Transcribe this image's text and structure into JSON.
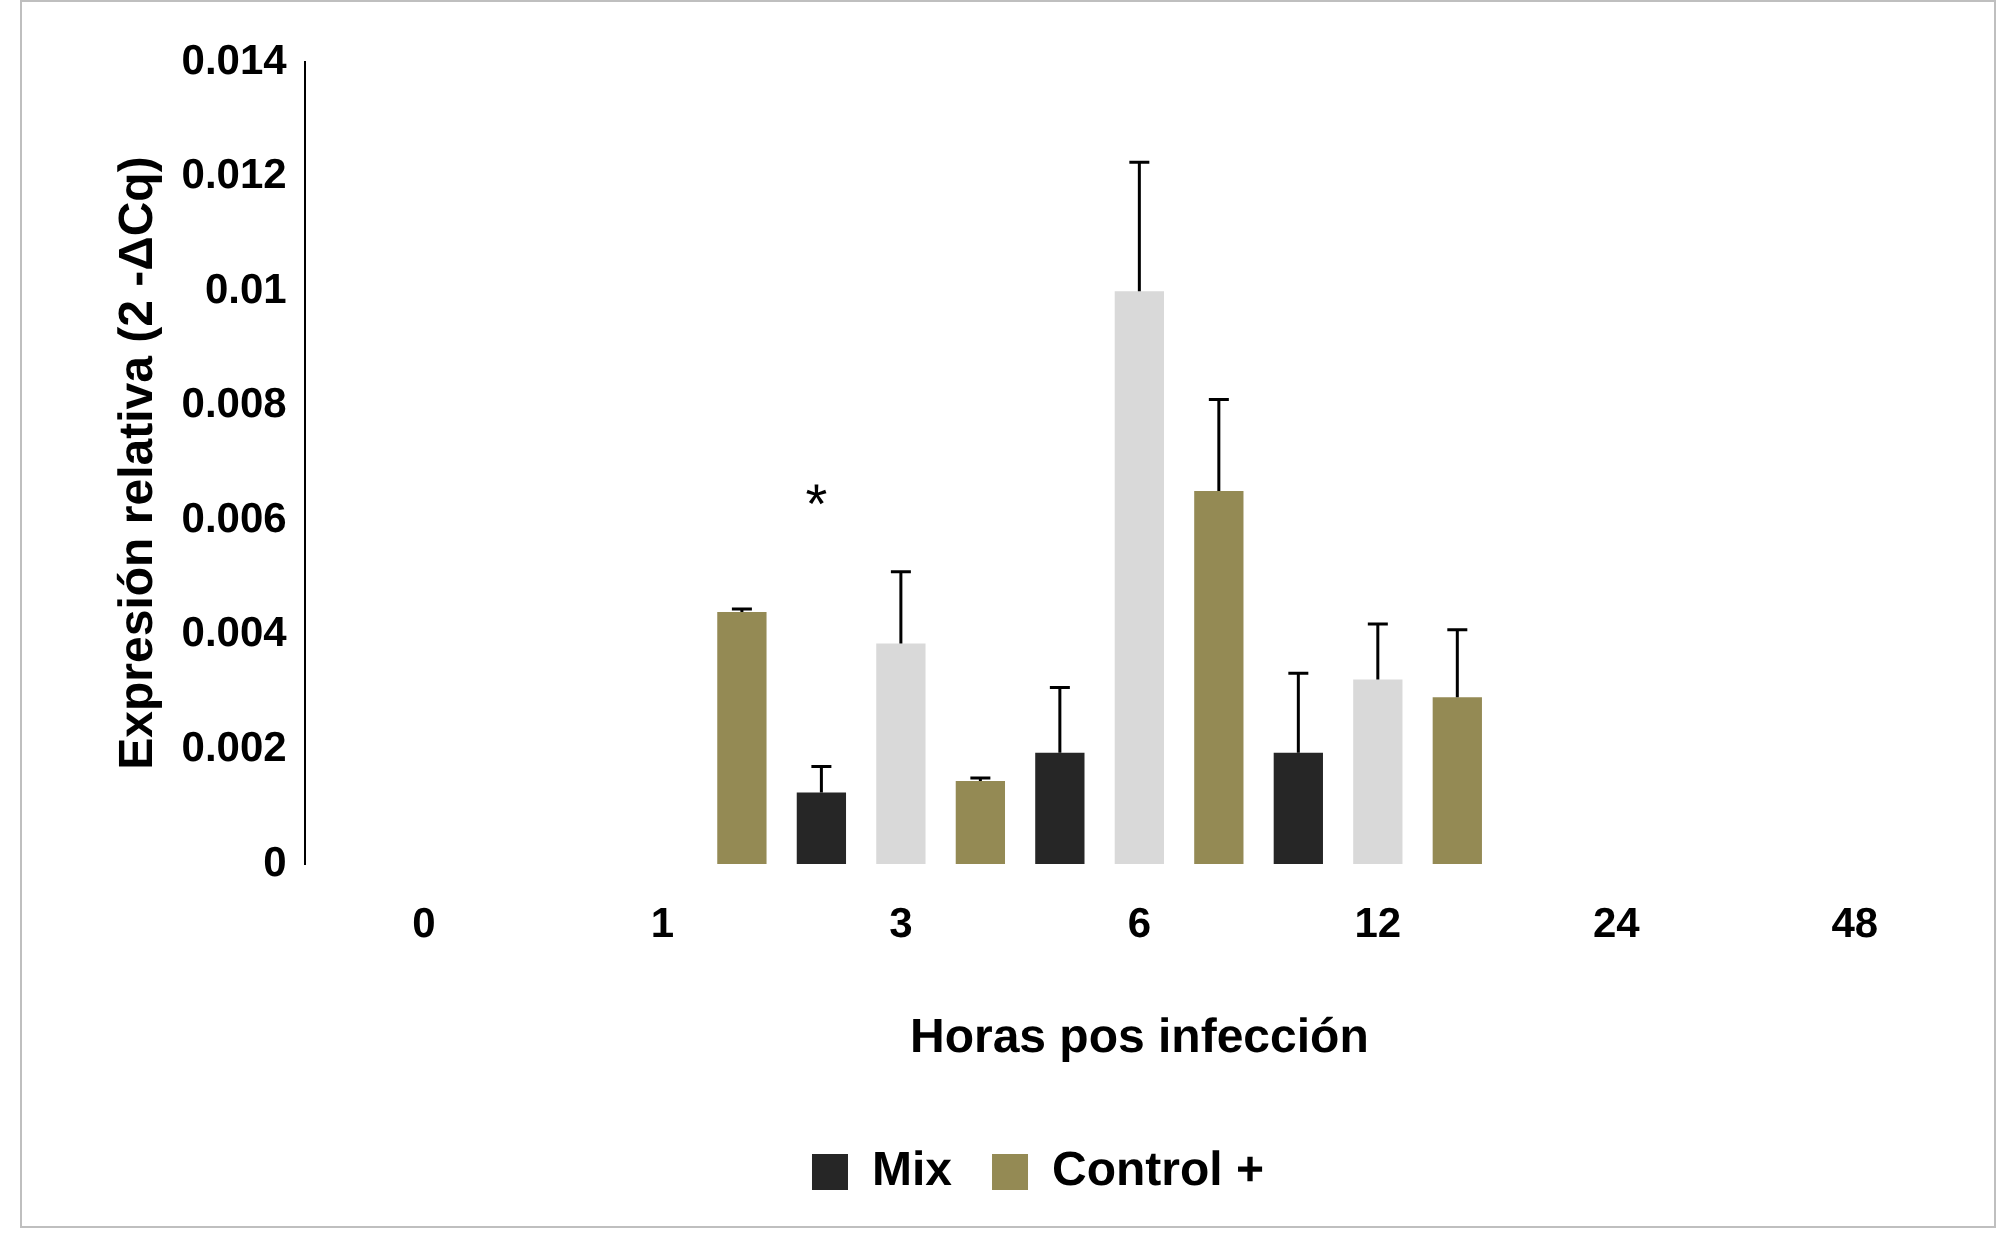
{
  "chart_data": {
    "type": "bar",
    "xlabel": "Horas pos infección",
    "ylabel": "Expresión relativa (2 -ΔCq)",
    "categories": [
      "0",
      "1",
      "3",
      "6",
      "12",
      "24",
      "48"
    ],
    "series": [
      {
        "name": "Mix",
        "color": "#262626",
        "values": [
          0,
          0,
          0.00125,
          0.00194,
          0.00194,
          0,
          0
        ],
        "errors": [
          null,
          null,
          [
            0.00125,
            0.0017
          ],
          [
            0.00194,
            0.00308
          ],
          [
            0.00194,
            0.00333
          ],
          null,
          null
        ]
      },
      {
        "color": "#d9d9d9",
        "values": [
          0,
          0,
          0.00385,
          0.01,
          0.00322,
          0,
          0
        ],
        "errors": [
          null,
          null,
          [
            0.00385,
            0.0051
          ],
          [
            0.01,
            0.01225
          ],
          [
            0.00322,
            0.00419
          ],
          null,
          null
        ]
      },
      {
        "name": "Control +",
        "color": "#948a54",
        "values": [
          0,
          0.0044,
          0.00145,
          0.00651,
          0.00291,
          0,
          0
        ],
        "errors": [
          null,
          [
            0.0044,
            0.00445
          ],
          [
            0.00145,
            0.0015
          ],
          [
            0.00651,
            0.00811
          ],
          [
            0.00291,
            0.00409
          ],
          null,
          null
        ]
      }
    ],
    "ylim": [
      0,
      0.014
    ],
    "yticks": [
      0,
      0.002,
      0.004,
      0.006,
      0.008,
      0.01,
      0.012,
      0.014
    ],
    "grid": false,
    "legend": "bottom",
    "annotations": [
      "*"
    ]
  }
}
